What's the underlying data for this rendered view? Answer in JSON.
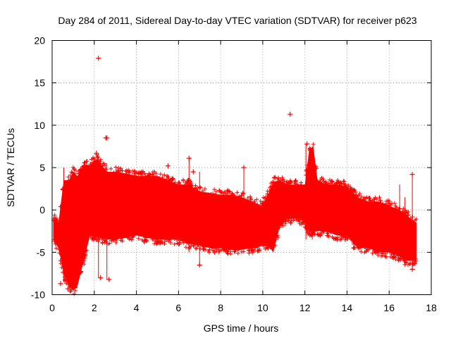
{
  "chart_data": {
    "type": "scatter",
    "title": "Day 284 of 2011, Sidereal Day-to-day VTEC variation (SDTVAR) for receiver p623",
    "xlabel": "GPS time / hours",
    "ylabel": "SDTVAR / TECUs",
    "xlim": [
      0,
      18
    ],
    "ylim": [
      -10,
      20
    ],
    "xticks": [
      0,
      2,
      4,
      6,
      8,
      10,
      12,
      14,
      16,
      18
    ],
    "yticks": [
      -10,
      -5,
      0,
      5,
      10,
      15,
      20
    ],
    "xtick_labels": [
      "0",
      "2",
      "4",
      "6",
      "8",
      "10",
      "12",
      "14",
      "16",
      "18"
    ],
    "ytick_labels": [
      "-10",
      "-5",
      "0",
      "5",
      "10",
      "15",
      "20"
    ],
    "grid": true,
    "marker": "+",
    "color": "#ff0000",
    "series": [
      {
        "name": "SDTVAR",
        "band": {
          "x": [
            0.05,
            0.3,
            0.55,
            0.8,
            1.0,
            1.2,
            1.5,
            1.8,
            2.1,
            2.3,
            2.6,
            3.0,
            3.5,
            4.0,
            4.5,
            5.0,
            5.5,
            6.0,
            6.5,
            7.0,
            7.5,
            8.0,
            8.5,
            9.0,
            9.5,
            9.9,
            10.2,
            10.5,
            10.8,
            11.2,
            11.7,
            12.0,
            12.2,
            12.4,
            12.6,
            13.0,
            13.5,
            14.0,
            14.5,
            15.0,
            15.5,
            16.0,
            16.5,
            16.8,
            17.0,
            17.3
          ],
          "upper": [
            -1.0,
            -1.5,
            3.5,
            3.5,
            4.5,
            4.0,
            5.3,
            5.3,
            6.0,
            5.5,
            4.5,
            4.5,
            4.3,
            4.0,
            4.0,
            4.0,
            3.5,
            3.0,
            3.0,
            2.2,
            2.0,
            1.8,
            1.8,
            1.5,
            1.0,
            0.5,
            1.5,
            3.3,
            3.5,
            3.0,
            3.0,
            3.0,
            7.0,
            7.5,
            3.5,
            3.0,
            3.0,
            2.8,
            1.5,
            1.0,
            1.0,
            0.5,
            0.0,
            -0.5,
            -1.0,
            -1.5
          ],
          "lower": [
            -3.5,
            -4.5,
            -7.5,
            -9.0,
            -9.5,
            -9.0,
            -6.0,
            -3.0,
            -3.0,
            -3.3,
            -3.5,
            -3.5,
            -3.3,
            -3.0,
            -3.3,
            -3.5,
            -3.5,
            -3.5,
            -4.0,
            -4.2,
            -4.5,
            -4.5,
            -4.7,
            -4.7,
            -4.5,
            -4.3,
            -4.0,
            -5.0,
            -2.0,
            -1.0,
            -1.0,
            -1.5,
            -2.5,
            -2.5,
            -2.5,
            -2.5,
            -3.0,
            -3.0,
            -4.5,
            -4.5,
            -5.0,
            -5.0,
            -5.5,
            -6.0,
            -6.0,
            -6.0
          ]
        },
        "outliers": [
          {
            "x": 2.2,
            "y": 17.9
          },
          {
            "x": 11.3,
            "y": 11.3
          },
          {
            "x": 2.55,
            "y": 8.5
          },
          {
            "x": 2.6,
            "y": 8.5
          },
          {
            "x": 2.1,
            "y": 6.7
          },
          {
            "x": 6.5,
            "y": 6.1
          },
          {
            "x": 12.1,
            "y": 7.8
          },
          {
            "x": 2.7,
            "y": -8.2
          },
          {
            "x": 2.3,
            "y": -8.0
          },
          {
            "x": 0.75,
            "y": -9.3
          },
          {
            "x": 17.1,
            "y": 4.2
          },
          {
            "x": 17.1,
            "y": -7.0
          },
          {
            "x": 9.1,
            "y": 5.0
          },
          {
            "x": 7.0,
            "y": -6.5
          },
          {
            "x": 6.7,
            "y": 4.5
          },
          {
            "x": 5.5,
            "y": 5.2
          },
          {
            "x": 0.4,
            "y": -8.7
          }
        ]
      }
    ]
  }
}
